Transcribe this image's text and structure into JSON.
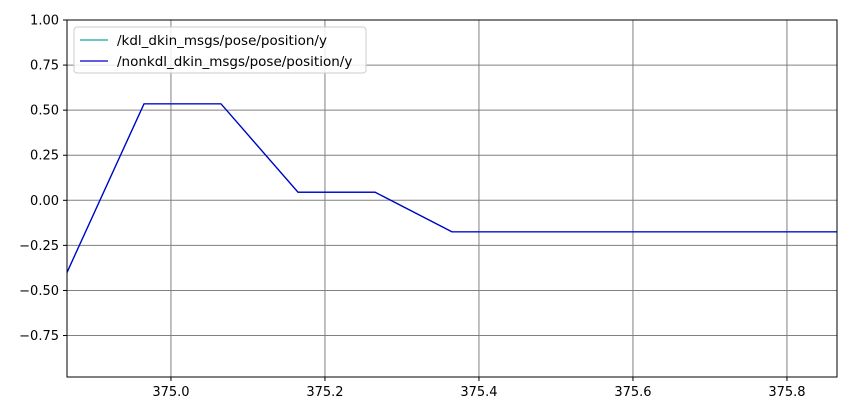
{
  "chart_data": {
    "type": "line",
    "title": "",
    "xlabel": "",
    "ylabel": "",
    "xlim": [
      374.865,
      375.865
    ],
    "ylim": [
      -0.98,
      1.0
    ],
    "grid": true,
    "grid_color": "#808080",
    "legend_position": "upper-left",
    "x_ticks": [
      375.0,
      375.2,
      375.4,
      375.6,
      375.8
    ],
    "x_tick_labels": [
      "375.0",
      "375.2",
      "375.4",
      "375.6",
      "375.8"
    ],
    "y_ticks": [
      1.0,
      0.75,
      0.5,
      0.25,
      0.0,
      -0.25,
      -0.5,
      -0.75
    ],
    "y_tick_labels": [
      "1.00",
      "0.75",
      "0.50",
      "0.25",
      "0.00",
      "−0.25",
      "−0.50",
      "−0.75"
    ],
    "series": [
      {
        "name": "/kdl_dkin_msgs/pose/position/y",
        "color": "#17a2a2",
        "x": [
          374.865,
          374.965,
          375.065,
          375.165,
          375.265,
          375.365,
          375.865
        ],
        "y": [
          -0.4,
          0.535,
          0.535,
          0.045,
          0.045,
          -0.175,
          -0.175
        ]
      },
      {
        "name": "/nonkdl_dkin_msgs/pose/position/y",
        "color": "#0000cc",
        "x": [
          374.865,
          374.965,
          375.065,
          375.165,
          375.265,
          375.365,
          375.865
        ],
        "y": [
          -0.4,
          0.535,
          0.535,
          0.045,
          0.045,
          -0.175,
          -0.175
        ]
      }
    ]
  }
}
